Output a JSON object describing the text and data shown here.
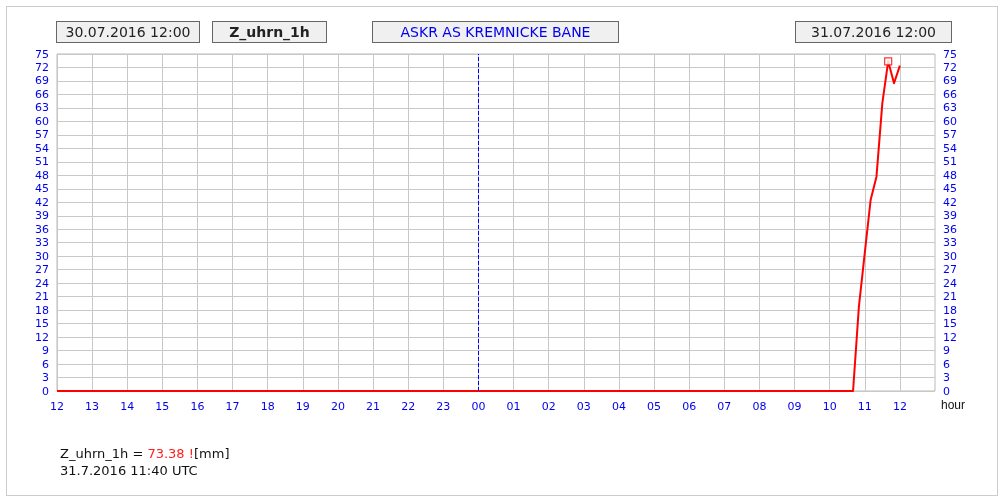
{
  "chart_data": {
    "type": "line",
    "title": "ASKR AS KREMNICKE BANE",
    "subtitle": "Z_uhrn_1h",
    "xlabel": "hour",
    "annotations": [
      "30.07.2016 12:00",
      "31.07.2016 12:00",
      "Z_uhrn_1h = 73.38 ![mm]",
      "31.7.2016 11:40 UTC"
    ],
    "x": [
      "2016-07-30T12:00",
      "2016-07-31T10:30",
      "2016-07-31T10:40",
      "2016-07-31T10:50",
      "2016-07-31T11:00",
      "2016-07-31T11:10",
      "2016-07-31T11:20",
      "2016-07-31T11:30",
      "2016-07-31T11:40",
      "2016-07-31T11:50",
      "2016-07-31T12:00"
    ],
    "series": [
      {
        "color": "#ff0000",
        "values": [
          0,
          0,
          0,
          18.8,
          30.7,
          42.5,
          47.7,
          64,
          73.38,
          68.5,
          72.4
        ]
      },
      {
        "type": "scatter",
        "marker": "square",
        "color": "#ff0000",
        "x": [
          "2016-07-31T11:40"
        ],
        "values": [
          73.38
        ]
      }
    ],
    "xlim": [
      "2016-07-30T12:00",
      "2016-07-31T13:00"
    ],
    "xticks": [
      {
        "value": "2016-07-30T12:00",
        "label": "12"
      },
      {
        "value": "2016-07-30T13:00",
        "label": "13"
      },
      {
        "value": "2016-07-30T14:00",
        "label": "14"
      },
      {
        "value": "2016-07-30T15:00",
        "label": "15"
      },
      {
        "value": "2016-07-30T16:00",
        "label": "16"
      },
      {
        "value": "2016-07-30T17:00",
        "label": "17"
      },
      {
        "value": "2016-07-30T18:00",
        "label": "18"
      },
      {
        "value": "2016-07-30T19:00",
        "label": "19"
      },
      {
        "value": "2016-07-30T20:00",
        "label": "20"
      },
      {
        "value": "2016-07-30T21:00",
        "label": "21"
      },
      {
        "value": "2016-07-30T22:00",
        "label": "22"
      },
      {
        "value": "2016-07-30T23:00",
        "label": "23"
      },
      {
        "value": "2016-07-31T00:00",
        "label": "00"
      },
      {
        "value": "2016-07-31T01:00",
        "label": "01"
      },
      {
        "value": "2016-07-31T02:00",
        "label": "02"
      },
      {
        "value": "2016-07-31T03:00",
        "label": "03"
      },
      {
        "value": "2016-07-31T04:00",
        "label": "04"
      },
      {
        "value": "2016-07-31T05:00",
        "label": "05"
      },
      {
        "value": "2016-07-31T06:00",
        "label": "06"
      },
      {
        "value": "2016-07-31T07:00",
        "label": "07"
      },
      {
        "value": "2016-07-31T08:00",
        "label": "08"
      },
      {
        "value": "2016-07-31T09:00",
        "label": "09"
      },
      {
        "value": "2016-07-31T10:00",
        "label": "10"
      },
      {
        "value": "2016-07-31T11:00",
        "label": "11"
      },
      {
        "value": "2016-07-31T12:00",
        "label": "12"
      }
    ],
    "ylim": [
      0,
      75
    ],
    "yticks": [
      0,
      3,
      6,
      9,
      12,
      15,
      18,
      21,
      24,
      27,
      30,
      33,
      36,
      39,
      42,
      45,
      48,
      51,
      54,
      57,
      60,
      63,
      66,
      69,
      72,
      75
    ],
    "y2lim": [
      0,
      75
    ],
    "y2ticks": [
      0,
      3,
      6,
      9,
      12,
      15,
      18,
      21,
      24,
      27,
      30,
      33,
      36,
      39,
      42,
      45,
      48,
      51,
      54,
      57,
      60,
      63,
      66,
      69,
      72,
      75
    ],
    "ref_lines": [
      {
        "axis": "x",
        "value": "2016-07-31T00:00",
        "color": "#0000ff",
        "line_style": "dashed"
      }
    ],
    "grid": true,
    "marker": "none",
    "line_style": "solid"
  }
}
